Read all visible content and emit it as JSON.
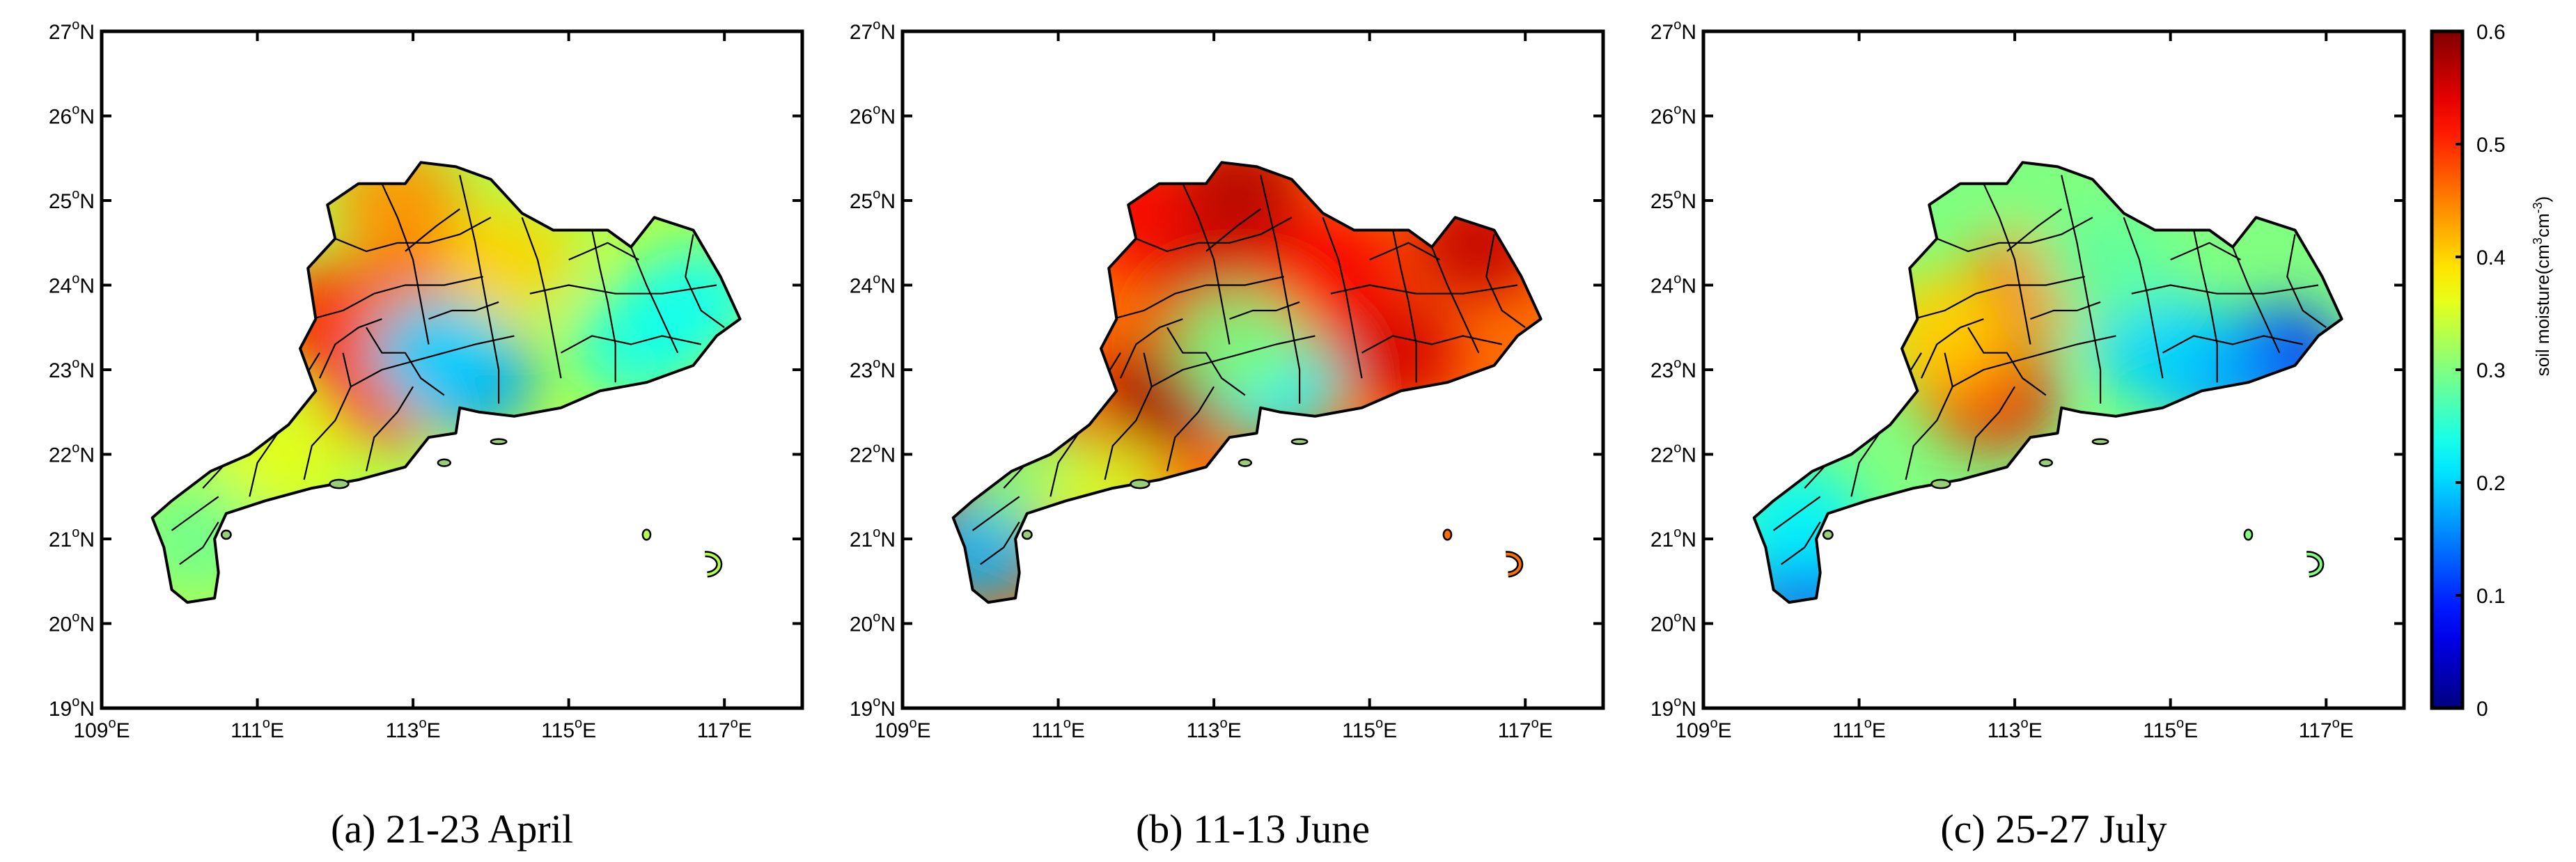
{
  "panels": [
    {
      "id": "a",
      "caption": "(a) 21-23 April",
      "base_level": 0.33,
      "hotspots": [
        {
          "lon": 112.6,
          "lat": 22.8,
          "value": 0.52
        },
        {
          "lon": 111.9,
          "lat": 23.6,
          "value": 0.5
        },
        {
          "lon": 113.1,
          "lat": 24.1,
          "value": 0.47
        },
        {
          "lon": 112.8,
          "lat": 25.0,
          "value": 0.44
        },
        {
          "lon": 114.2,
          "lat": 24.3,
          "value": 0.4
        },
        {
          "lon": 113.7,
          "lat": 22.9,
          "value": 0.16
        },
        {
          "lon": 113.3,
          "lat": 23.2,
          "value": 0.2
        },
        {
          "lon": 115.9,
          "lat": 23.3,
          "value": 0.24
        },
        {
          "lon": 116.6,
          "lat": 23.8,
          "value": 0.23
        },
        {
          "lon": 110.2,
          "lat": 21.0,
          "value": 0.29
        },
        {
          "lon": 111.3,
          "lat": 22.0,
          "value": 0.36
        }
      ]
    },
    {
      "id": "b",
      "caption": "(b) 11-13 June",
      "base_level": 0.46,
      "hotspots": [
        {
          "lon": 112.4,
          "lat": 22.7,
          "value": 0.58
        },
        {
          "lon": 113.3,
          "lat": 25.1,
          "value": 0.57
        },
        {
          "lon": 113.0,
          "lat": 24.0,
          "value": 0.55
        },
        {
          "lon": 115.3,
          "lat": 23.2,
          "value": 0.55
        },
        {
          "lon": 116.4,
          "lat": 24.5,
          "value": 0.56
        },
        {
          "lon": 114.5,
          "lat": 24.2,
          "value": 0.53
        },
        {
          "lon": 111.8,
          "lat": 24.9,
          "value": 0.53
        },
        {
          "lon": 113.8,
          "lat": 22.8,
          "value": 0.22
        },
        {
          "lon": 113.3,
          "lat": 23.3,
          "value": 0.3
        },
        {
          "lon": 110.0,
          "lat": 20.9,
          "value": 0.18
        },
        {
          "lon": 110.6,
          "lat": 21.8,
          "value": 0.3
        },
        {
          "lon": 111.6,
          "lat": 21.5,
          "value": 0.35
        }
      ]
    },
    {
      "id": "c",
      "caption": "(c) 25-27 July",
      "base_level": 0.3,
      "hotspots": [
        {
          "lon": 112.7,
          "lat": 22.7,
          "value": 0.54
        },
        {
          "lon": 112.3,
          "lat": 23.1,
          "value": 0.45
        },
        {
          "lon": 113.2,
          "lat": 24.0,
          "value": 0.45
        },
        {
          "lon": 112.0,
          "lat": 23.5,
          "value": 0.4
        },
        {
          "lon": 116.4,
          "lat": 23.1,
          "value": 0.1
        },
        {
          "lon": 115.5,
          "lat": 23.0,
          "value": 0.17
        },
        {
          "lon": 114.8,
          "lat": 23.3,
          "value": 0.2
        },
        {
          "lon": 110.3,
          "lat": 20.5,
          "value": 0.12
        },
        {
          "lon": 110.2,
          "lat": 21.2,
          "value": 0.22
        },
        {
          "lon": 113.8,
          "lat": 25.0,
          "value": 0.3
        },
        {
          "lon": 114.2,
          "lat": 24.2,
          "value": 0.28
        }
      ]
    }
  ],
  "x_ticks": [
    109,
    111,
    113,
    115,
    117
  ],
  "x_tick_labels": [
    "109",
    "111",
    "113",
    "115",
    "117"
  ],
  "x_tick_suffix": "E",
  "y_ticks": [
    19,
    20,
    21,
    22,
    23,
    24,
    25,
    26,
    27
  ],
  "y_tick_labels": [
    "19",
    "20",
    "21",
    "22",
    "23",
    "24",
    "25",
    "26",
    "27"
  ],
  "y_tick_suffix": "N",
  "degree_symbol": "o",
  "lon_range": [
    109,
    118
  ],
  "lat_range": [
    19,
    27
  ],
  "colorbar": {
    "min": 0,
    "max": 0.6,
    "colormap": "jet",
    "ticks": [
      0,
      0.1,
      0.2,
      0.3,
      0.4,
      0.5,
      0.6
    ],
    "tick_labels": [
      "0",
      "0.1",
      "0.2",
      "0.3",
      "0.4",
      "0.5",
      "0.6"
    ],
    "label_main": "soil moisture(cm",
    "label_sup1": "3",
    "label_mid": "cm",
    "label_sup2": "-3",
    "label_end": ")"
  },
  "outline_color": "#000000"
}
